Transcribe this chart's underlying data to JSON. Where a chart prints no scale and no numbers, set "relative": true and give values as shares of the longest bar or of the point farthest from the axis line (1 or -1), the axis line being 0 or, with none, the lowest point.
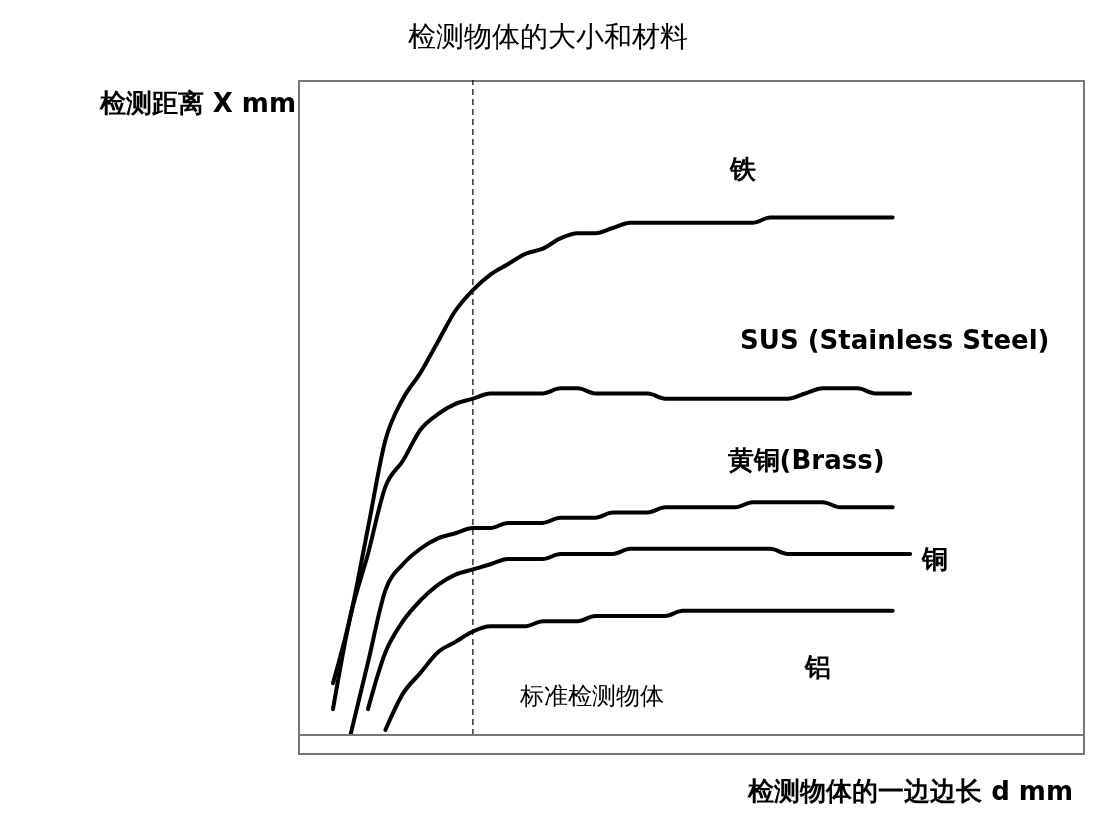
{
  "chart_data": {
    "type": "line",
    "title": "检测物体的大小和材料",
    "xlabel": "检测物体的一边边长 d mm",
    "ylabel": "检测距离 X mm",
    "relative": true,
    "grid": false,
    "legend": false,
    "marker": "none",
    "line_style": "solid",
    "categories": [
      null,
      null,
      null,
      null,
      null,
      null,
      null,
      null,
      null,
      null,
      null,
      null,
      null,
      null,
      null,
      null,
      null,
      null,
      null,
      null,
      null,
      null,
      null,
      null,
      null,
      null,
      null,
      null,
      null,
      null,
      null,
      null,
      null,
      null,
      null,
      null,
      null,
      null,
      null,
      null,
      null,
      null,
      null,
      null,
      null,
      null
    ],
    "series": [
      {
        "name": "铁",
        "color": "#000000",
        "values": [
          null,
          null,
          0.1,
          0.23,
          0.4,
          0.57,
          0.65,
          0.7,
          0.76,
          0.82,
          0.86,
          0.89,
          0.91,
          0.93,
          0.94,
          0.96,
          0.97,
          0.97,
          0.98,
          0.99,
          0.99,
          0.99,
          0.99,
          0.99,
          0.99,
          0.99,
          0.99,
          1.0,
          1.0,
          1.0,
          1.0,
          1.0,
          1.0,
          1.0,
          1.0,
          null,
          null,
          null,
          null,
          null,
          null,
          null,
          null,
          null,
          null,
          null
        ]
      },
      {
        "name": "SUS (Stainless Steel)",
        "color": "#000000",
        "values": [
          null,
          null,
          0.05,
          0.23,
          0.35,
          0.48,
          0.53,
          0.59,
          0.62,
          0.64,
          0.65,
          0.66,
          0.66,
          0.66,
          0.66,
          0.67,
          0.67,
          0.66,
          0.66,
          0.66,
          0.66,
          0.65,
          0.65,
          0.65,
          0.65,
          0.65,
          0.65,
          0.65,
          0.65,
          0.66,
          0.67,
          0.67,
          0.67,
          0.66,
          0.66,
          0.66,
          null,
          null,
          null,
          null,
          null,
          null,
          null,
          null,
          null,
          null
        ]
      },
      {
        "name": "黄铜(Brass)",
        "color": "#000000",
        "values": [
          null,
          null,
          null,
          0.0,
          0.14,
          0.28,
          0.33,
          0.36,
          0.38,
          0.39,
          0.4,
          0.4,
          0.41,
          0.41,
          0.41,
          0.42,
          0.42,
          0.42,
          0.43,
          0.43,
          0.43,
          0.44,
          0.44,
          0.44,
          0.44,
          0.44,
          0.45,
          0.45,
          0.45,
          0.45,
          0.45,
          0.44,
          0.44,
          0.44,
          0.44,
          null,
          null,
          null,
          null,
          null,
          null,
          null,
          null,
          null,
          null,
          null
        ]
      },
      {
        "name": "铜",
        "color": "#000000",
        "values": [
          null,
          null,
          null,
          null,
          0.05,
          0.16,
          0.22,
          0.26,
          0.29,
          0.31,
          0.32,
          0.33,
          0.34,
          0.34,
          0.34,
          0.35,
          0.35,
          0.35,
          0.35,
          0.36,
          0.36,
          0.36,
          0.36,
          0.36,
          0.36,
          0.36,
          0.36,
          0.36,
          0.35,
          0.35,
          0.35,
          0.35,
          0.35,
          0.35,
          0.35,
          0.35,
          null,
          null,
          null,
          null,
          null,
          null,
          null,
          null,
          null,
          null
        ]
      },
      {
        "name": "铝",
        "color": "#000000",
        "values": [
          null,
          null,
          null,
          null,
          null,
          0.01,
          0.08,
          0.12,
          0.16,
          0.18,
          0.2,
          0.21,
          0.21,
          0.21,
          0.22,
          0.22,
          0.22,
          0.23,
          0.23,
          0.23,
          0.23,
          0.23,
          0.24,
          0.24,
          0.24,
          0.24,
          0.24,
          0.24,
          0.24,
          0.24,
          0.24,
          0.24,
          0.24,
          0.24,
          0.24,
          null,
          null,
          null,
          null,
          null,
          null,
          null,
          null,
          null,
          null,
          null
        ]
      }
    ],
    "annotations": [
      "标准检测物体"
    ]
  }
}
